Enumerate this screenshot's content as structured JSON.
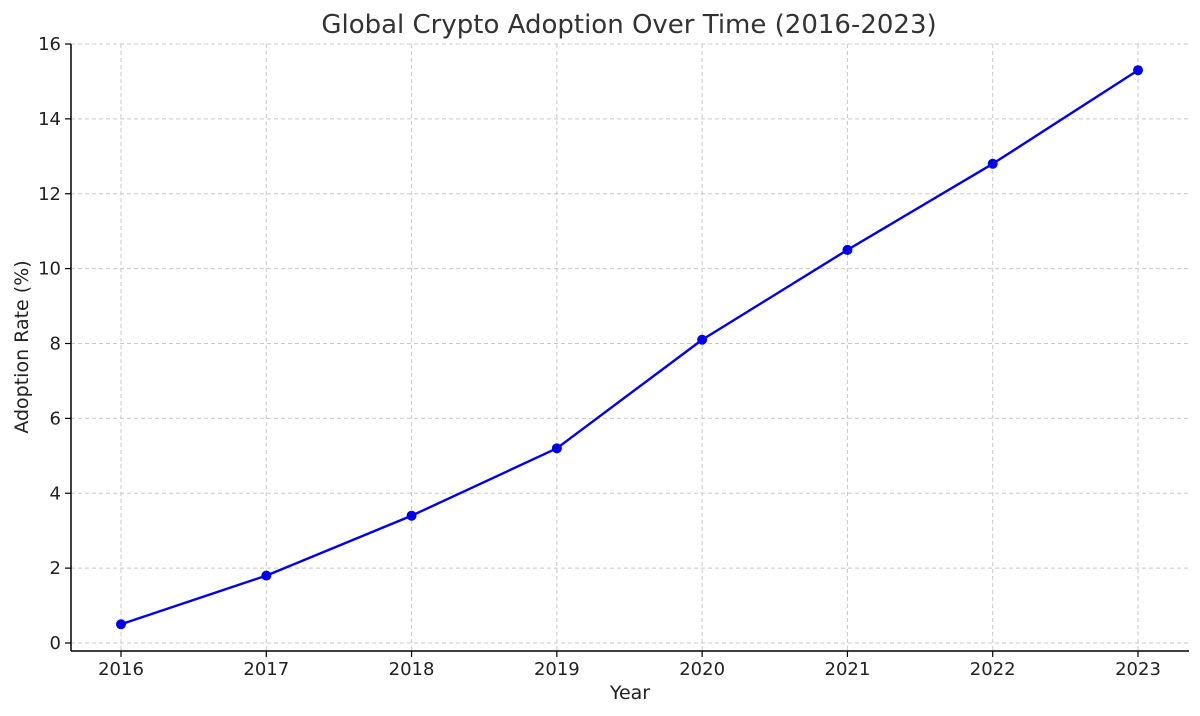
{
  "chart_data": {
    "type": "line",
    "title": "Global Crypto Adoption Over Time (2016-2023)",
    "xlabel": "Year",
    "ylabel": "Adoption Rate (%)",
    "x": [
      2016,
      2017,
      2018,
      2019,
      2020,
      2021,
      2022,
      2023
    ],
    "x_tick_labels": [
      "2016",
      "2017",
      "2018",
      "2019",
      "2020",
      "2021",
      "2022",
      "2023"
    ],
    "series": [
      {
        "values": [
          0.5,
          1.8,
          3.4,
          5.2,
          8.1,
          10.5,
          12.8,
          15.3
        ],
        "color": "#0000ee",
        "marker": "circle"
      }
    ],
    "ylim": [
      0,
      16
    ],
    "y_ticks": [
      0,
      2,
      4,
      6,
      8,
      10,
      12,
      14,
      16
    ],
    "y_tick_labels": [
      "0",
      "2",
      "4",
      "6",
      "8",
      "10",
      "12",
      "14",
      "16"
    ],
    "grid": true,
    "grid_style": "dashed"
  }
}
